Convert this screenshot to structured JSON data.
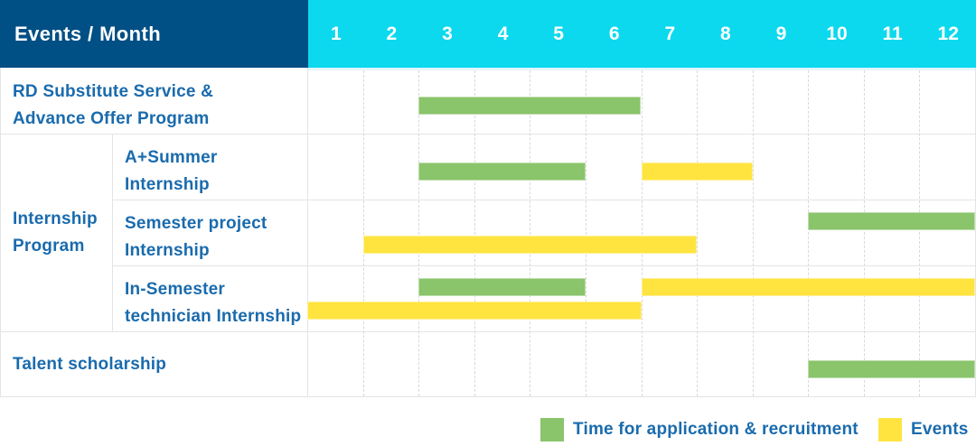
{
  "header": {
    "title": "Events / Month",
    "months": [
      "1",
      "2",
      "3",
      "4",
      "5",
      "6",
      "7",
      "8",
      "9",
      "10",
      "11",
      "12"
    ]
  },
  "colors": {
    "header_navy": "#004F85",
    "header_cyan": "#0CD9EE",
    "header_underline": "#E3F6FC",
    "bar_green": "#8AC46B",
    "bar_yellow": "#FFE440",
    "label_blue": "#1A6BAD",
    "grid_line": "#E3E4E8"
  },
  "rows": [
    {
      "label_lines": [
        "RD Substitute Service &",
        "Advance Offer Program"
      ]
    },
    {
      "label_lines": [
        "A+Summer",
        "Internship"
      ]
    },
    {
      "label_lines": [
        "Semester project",
        "Internship"
      ]
    },
    {
      "label_lines": [
        "In-Semester",
        "technician Internship"
      ]
    },
    {
      "label_lines": [
        "Talent scholarship"
      ]
    }
  ],
  "group": {
    "label_lines": [
      "Internship",
      "Program"
    ]
  },
  "legend": {
    "items": [
      {
        "label": "Time for application & recruitment",
        "series": "application"
      },
      {
        "label": "Events",
        "series": "events"
      }
    ]
  },
  "chart_data": {
    "type": "bar",
    "subtype": "gantt",
    "title": "Events / Month",
    "x_axis": {
      "label": "Month",
      "ticks": [
        1,
        2,
        3,
        4,
        5,
        6,
        7,
        8,
        9,
        10,
        11,
        12
      ],
      "range": [
        1,
        12
      ]
    },
    "legend_entries": [
      "Time for application & recruitment",
      "Events"
    ],
    "legend_position": "bottom-right",
    "grid": "dashed-vertical-month-lines",
    "rows": [
      {
        "task": "RD Substitute Service & Advance Offer Program",
        "group": null,
        "row_index": 0,
        "bars": [
          {
            "series": "application",
            "start_month": 3,
            "end_month": 6,
            "line": "single"
          }
        ]
      },
      {
        "task": "A+Summer Internship",
        "group": "Internship Program",
        "row_index": 1,
        "bars": [
          {
            "series": "application",
            "start_month": 3,
            "end_month": 5,
            "line": "single"
          },
          {
            "series": "events",
            "start_month": 7,
            "end_month": 8,
            "line": "single"
          }
        ]
      },
      {
        "task": "Semester project Internship",
        "group": "Internship Program",
        "row_index": 2,
        "bars": [
          {
            "series": "application",
            "start_month": 10,
            "end_month": 12,
            "line": "top"
          },
          {
            "series": "events",
            "start_month": 2,
            "end_month": 7,
            "line": "bottom"
          }
        ]
      },
      {
        "task": "In-Semester technician Internship",
        "group": "Internship Program",
        "row_index": 3,
        "bars": [
          {
            "series": "application",
            "start_month": 3,
            "end_month": 5,
            "line": "top"
          },
          {
            "series": "events",
            "start_month": 7,
            "end_month": 12,
            "line": "top"
          },
          {
            "series": "events",
            "start_month": 1,
            "end_month": 6,
            "line": "bottom"
          }
        ]
      },
      {
        "task": "Talent scholarship",
        "group": null,
        "row_index": 4,
        "bars": [
          {
            "series": "application",
            "start_month": 10,
            "end_month": 12,
            "line": "single"
          }
        ]
      }
    ]
  }
}
